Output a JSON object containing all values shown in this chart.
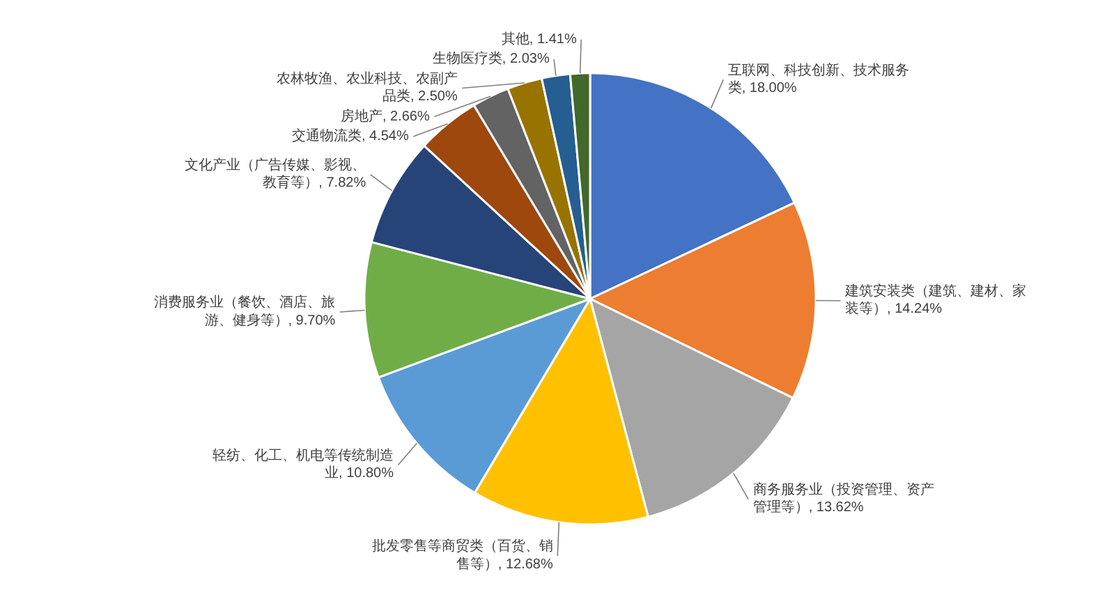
{
  "chart_data": {
    "type": "pie",
    "categories": [
      "互联网、科技创新、技术服务类",
      "建筑安装类（建筑、建材、家装等）",
      "商务服务业（投资管理、资产管理等）",
      "批发零售等商贸类（百货、销售等）",
      "轻纺、化工、机电等传统制造业",
      "消费服务业（餐饮、酒店、旅游、健身等）",
      "文化产业（广告传媒、影视、教育等）",
      "交通物流类",
      "房地产",
      "农林牧渔、农业科技、农副产品类",
      "生物医疗类",
      "其他"
    ],
    "values": [
      18.0,
      14.24,
      13.62,
      12.68,
      10.8,
      9.7,
      7.82,
      4.54,
      2.66,
      2.5,
      2.03,
      1.41
    ],
    "colors": [
      "#4472c4",
      "#ed7d31",
      "#a5a5a5",
      "#ffc000",
      "#5b9bd5",
      "#70ad47",
      "#264478",
      "#9e480e",
      "#636363",
      "#997300",
      "#255e91",
      "#43682b"
    ],
    "value_labels": [
      "18.00%",
      "14.24%",
      "13.62%",
      "12.68%",
      "10.80%",
      "9.70%",
      "7.82%",
      "4.54%",
      "2.66%",
      "2.50%",
      "2.03%",
      "1.41%"
    ]
  }
}
